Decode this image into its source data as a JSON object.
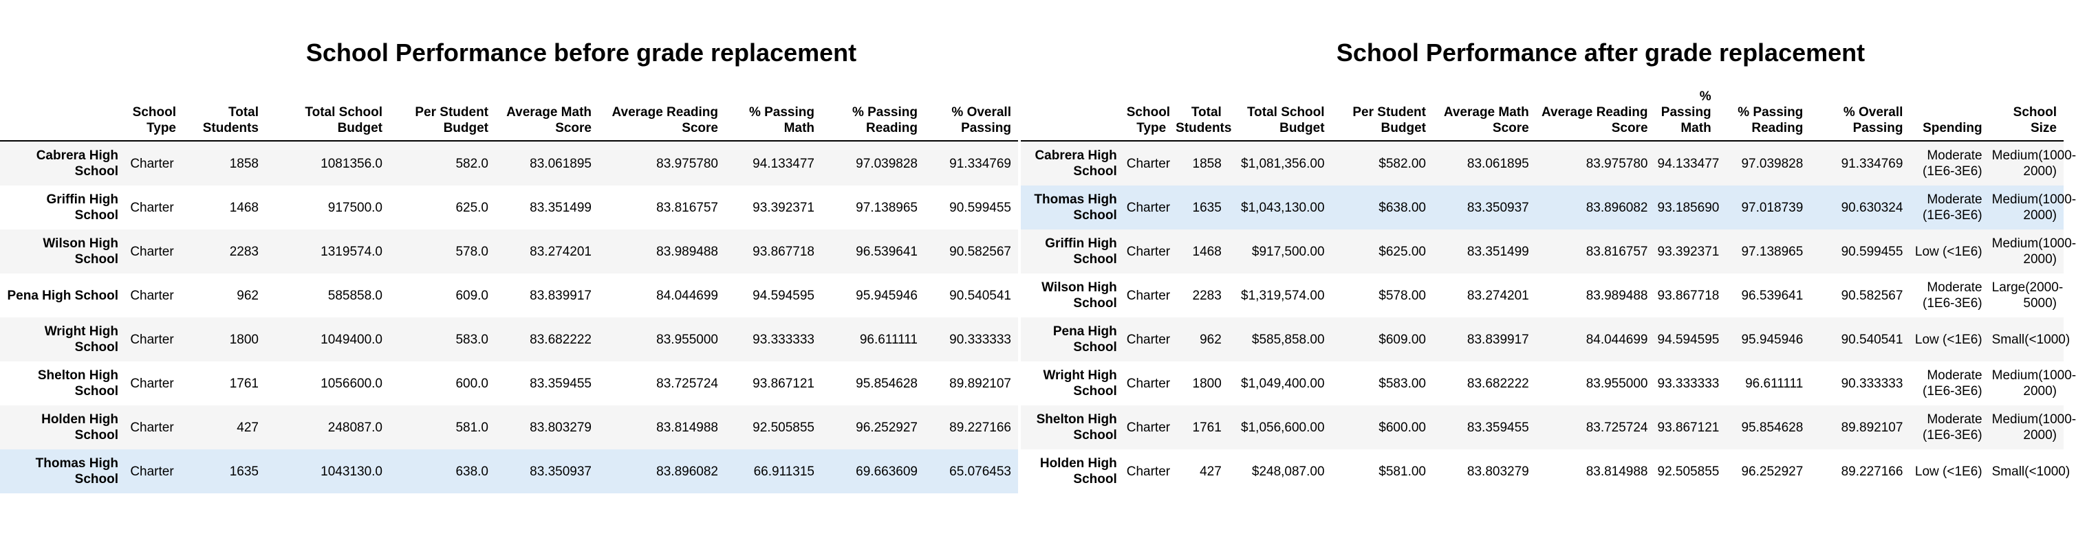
{
  "before": {
    "title": "School Performance before grade replacement",
    "columns": [
      "School Type",
      "Total Students",
      "Total School Budget",
      "Per Student Budget",
      "Average Math Score",
      "Average Reading Score",
      "% Passing Math",
      "% Passing Reading",
      "% Overall Passing"
    ],
    "rows": [
      {
        "school": "Cabrera High School",
        "cells": [
          "Charter",
          "1858",
          "1081356.0",
          "582.0",
          "83.061895",
          "83.975780",
          "94.133477",
          "97.039828",
          "91.334769"
        ]
      },
      {
        "school": "Griffin High School",
        "cells": [
          "Charter",
          "1468",
          "917500.0",
          "625.0",
          "83.351499",
          "83.816757",
          "93.392371",
          "97.138965",
          "90.599455"
        ]
      },
      {
        "school": "Wilson High School",
        "cells": [
          "Charter",
          "2283",
          "1319574.0",
          "578.0",
          "83.274201",
          "83.989488",
          "93.867718",
          "96.539641",
          "90.582567"
        ]
      },
      {
        "school": "Pena High School",
        "cells": [
          "Charter",
          "962",
          "585858.0",
          "609.0",
          "83.839917",
          "84.044699",
          "94.594595",
          "95.945946",
          "90.540541"
        ]
      },
      {
        "school": "Wright High School",
        "cells": [
          "Charter",
          "1800",
          "1049400.0",
          "583.0",
          "83.682222",
          "83.955000",
          "93.333333",
          "96.611111",
          "90.333333"
        ]
      },
      {
        "school": "Shelton High School",
        "cells": [
          "Charter",
          "1761",
          "1056600.0",
          "600.0",
          "83.359455",
          "83.725724",
          "93.867121",
          "95.854628",
          "89.892107"
        ]
      },
      {
        "school": "Holden High School",
        "cells": [
          "Charter",
          "427",
          "248087.0",
          "581.0",
          "83.803279",
          "83.814988",
          "92.505855",
          "96.252927",
          "89.227166"
        ]
      },
      {
        "school": "Thomas High School",
        "cells": [
          "Charter",
          "1635",
          "1043130.0",
          "638.0",
          "83.350937",
          "83.896082",
          "66.911315",
          "69.663609",
          "65.076453"
        ]
      }
    ]
  },
  "after": {
    "title": "School Performance after grade replacement",
    "columns": [
      "School Type",
      "Total Students",
      "Total School Budget",
      "Per Student Budget",
      "Average Math Score",
      "Average Reading Score",
      "% Passing Math",
      "% Passing Reading",
      "% Overall Passing",
      "Spending",
      "School Size"
    ],
    "rows": [
      {
        "school": "Cabrera High School",
        "cells": [
          "Charter",
          "1858",
          "$1,081,356.00",
          "$582.00",
          "83.061895",
          "83.975780",
          "94.133477",
          "97.039828",
          "91.334769",
          "Moderate (1E6-3E6)",
          "Medium(1000-2000)"
        ]
      },
      {
        "school": "Thomas High School",
        "cells": [
          "Charter",
          "1635",
          "$1,043,130.00",
          "$638.00",
          "83.350937",
          "83.896082",
          "93.185690",
          "97.018739",
          "90.630324",
          "Moderate (1E6-3E6)",
          "Medium(1000-2000)"
        ]
      },
      {
        "school": "Griffin High School",
        "cells": [
          "Charter",
          "1468",
          "$917,500.00",
          "$625.00",
          "83.351499",
          "83.816757",
          "93.392371",
          "97.138965",
          "90.599455",
          "Low (<1E6)",
          "Medium(1000-2000)"
        ]
      },
      {
        "school": "Wilson High School",
        "cells": [
          "Charter",
          "2283",
          "$1,319,574.00",
          "$578.00",
          "83.274201",
          "83.989488",
          "93.867718",
          "96.539641",
          "90.582567",
          "Moderate (1E6-3E6)",
          "Large(2000-5000)"
        ]
      },
      {
        "school": "Pena High School",
        "cells": [
          "Charter",
          "962",
          "$585,858.00",
          "$609.00",
          "83.839917",
          "84.044699",
          "94.594595",
          "95.945946",
          "90.540541",
          "Low (<1E6)",
          "Small(<1000)"
        ]
      },
      {
        "school": "Wright High School",
        "cells": [
          "Charter",
          "1800",
          "$1,049,400.00",
          "$583.00",
          "83.682222",
          "83.955000",
          "93.333333",
          "96.611111",
          "90.333333",
          "Moderate (1E6-3E6)",
          "Medium(1000-2000)"
        ]
      },
      {
        "school": "Shelton High School",
        "cells": [
          "Charter",
          "1761",
          "$1,056,600.00",
          "$600.00",
          "83.359455",
          "83.725724",
          "93.867121",
          "95.854628",
          "89.892107",
          "Moderate (1E6-3E6)",
          "Medium(1000-2000)"
        ]
      },
      {
        "school": "Holden High School",
        "cells": [
          "Charter",
          "427",
          "$248,087.00",
          "$581.00",
          "83.803279",
          "83.814988",
          "92.505855",
          "96.252927",
          "89.227166",
          "Low (<1E6)",
          "Small(<1000)"
        ]
      }
    ]
  },
  "highlight_school": "Thomas High School",
  "colors": {
    "highlight_row": "#ddebf8",
    "striped_row": "#f5f5f5",
    "header_rule": "#000000"
  }
}
